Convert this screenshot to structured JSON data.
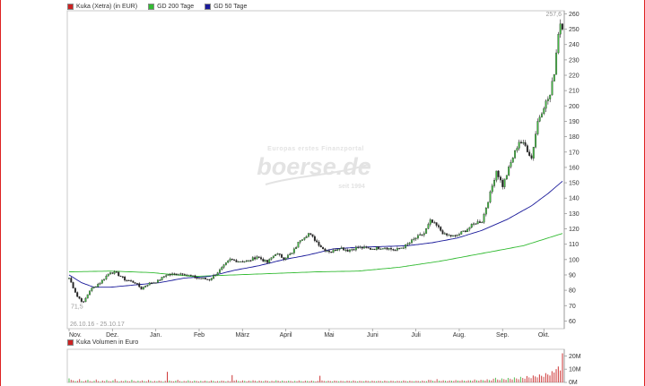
{
  "legend": {
    "price": {
      "label": "Kuka (Xetra) (in EUR)",
      "color": "#cc2222"
    },
    "gd200": {
      "label": "GD 200 Tage",
      "color": "#33bb33"
    },
    "gd50": {
      "label": "GD 50 Tage",
      "color": "#1a1a9a"
    }
  },
  "watermark": {
    "tagline": "Europas erstes Finanzportal",
    "brand": "boerse.de",
    "since": "seit 1994"
  },
  "date_range": "26.10.16 - 25.10.17",
  "volume_legend": {
    "label": "Kuka Volumen in Euro",
    "color": "#cc2222"
  },
  "chart_data": [
    {
      "type": "line",
      "title": "Kuka (Xetra) (in EUR)",
      "x": [
        "Nov.",
        "Dez.",
        "Jan.",
        "Feb",
        "März",
        "April",
        "Mai",
        "Juni",
        "Juli",
        "Aug.",
        "Sep.",
        "Okt."
      ],
      "ylim": [
        55,
        262
      ],
      "yticks": [
        60,
        70,
        80,
        90,
        100,
        110,
        120,
        130,
        140,
        150,
        160,
        170,
        180,
        190,
        200,
        210,
        220,
        230,
        240,
        250,
        260
      ],
      "min_label": "71,5",
      "max_label": "257,6",
      "grid": false,
      "series": [
        {
          "name": "Kuka (Xetra) (in EUR)",
          "color": "#1a1a1a",
          "knots": [
            [
              0,
              88
            ],
            [
              4,
              76
            ],
            [
              7,
              72
            ],
            [
              10,
              80
            ],
            [
              15,
              85
            ],
            [
              20,
              92
            ],
            [
              23,
              91
            ],
            [
              27,
              87
            ],
            [
              32,
              85
            ],
            [
              35,
              81
            ],
            [
              38,
              84
            ],
            [
              43,
              86
            ],
            [
              47,
              90
            ],
            [
              55,
              91
            ],
            [
              62,
              88
            ],
            [
              68,
              87
            ],
            [
              73,
              93
            ],
            [
              78,
              100
            ],
            [
              82,
              99
            ],
            [
              87,
              99
            ],
            [
              91,
              102
            ],
            [
              96,
              98
            ],
            [
              100,
              104
            ],
            [
              104,
              101
            ],
            [
              108,
              104
            ],
            [
              112,
              113
            ],
            [
              116,
              117
            ],
            [
              119,
              113
            ],
            [
              123,
              107
            ],
            [
              127,
              105
            ],
            [
              131,
              108
            ],
            [
              135,
              106
            ],
            [
              140,
              108
            ],
            [
              146,
              107
            ],
            [
              153,
              108
            ],
            [
              158,
              106
            ],
            [
              163,
              109
            ],
            [
              168,
              114
            ],
            [
              172,
              117
            ],
            [
              175,
              125
            ],
            [
              178,
              122
            ],
            [
              182,
              116
            ],
            [
              187,
              115
            ],
            [
              192,
              119
            ],
            [
              197,
              124
            ],
            [
              200,
              125
            ],
            [
              204,
              143
            ],
            [
              207,
              158
            ],
            [
              210,
              148
            ],
            [
              214,
              163
            ],
            [
              218,
              177
            ],
            [
              221,
              174
            ],
            [
              224,
              166
            ],
            [
              227,
              190
            ],
            [
              230,
              200
            ],
            [
              233,
              207
            ],
            [
              235,
              222
            ],
            [
              237,
              248
            ],
            [
              238,
              254
            ],
            [
              239,
              252
            ]
          ]
        },
        {
          "name": "GD 200 Tage",
          "color": "#33bb33",
          "knots": [
            [
              0,
              92
            ],
            [
              20,
              92.5
            ],
            [
              40,
              91.5
            ],
            [
              60,
              89
            ],
            [
              80,
              90
            ],
            [
              100,
              91
            ],
            [
              120,
              92
            ],
            [
              140,
              92.5
            ],
            [
              160,
              95
            ],
            [
              180,
              99
            ],
            [
              200,
              104
            ],
            [
              220,
              109
            ],
            [
              239,
              117
            ]
          ]
        },
        {
          "name": "GD 50 Tage",
          "color": "#1a1a9a",
          "knots": [
            [
              0,
              90
            ],
            [
              6,
              85
            ],
            [
              12,
              82
            ],
            [
              20,
              82
            ],
            [
              32,
              83.5
            ],
            [
              44,
              85
            ],
            [
              56,
              88
            ],
            [
              68,
              89
            ],
            [
              80,
              93
            ],
            [
              92,
              96
            ],
            [
              104,
              100
            ],
            [
              116,
              103
            ],
            [
              128,
              107
            ],
            [
              140,
              108
            ],
            [
              152,
              108.5
            ],
            [
              164,
              109
            ],
            [
              176,
              111
            ],
            [
              188,
              114
            ],
            [
              200,
              119
            ],
            [
              212,
              126
            ],
            [
              224,
              135
            ],
            [
              232,
              143
            ],
            [
              239,
              151
            ]
          ]
        }
      ]
    },
    {
      "type": "bar",
      "title": "Kuka Volumen in Euro",
      "ylim": [
        0,
        25
      ],
      "yticks": [
        "0M",
        "10M",
        "20M"
      ],
      "grid": false,
      "bars": [
        3,
        2,
        1.5,
        1,
        1.2,
        2.5,
        1,
        0.8,
        1.5,
        2,
        1,
        0.7,
        1.2,
        2.2,
        1,
        0.6,
        1.4,
        0.9,
        1.8,
        1,
        0.8,
        1.5,
        2.5,
        1,
        0.7,
        1.2,
        0.9,
        1.6,
        1,
        0.8,
        2,
        1.1,
        0.7,
        1.3,
        0.9,
        1.5,
        1,
        0.8,
        1.9,
        1.2,
        0.7,
        1.1,
        0.9,
        1.4,
        1,
        0.6,
        1.2,
        8,
        1.5,
        1,
        0.8,
        1.3,
        2,
        1,
        0.7,
        1.1,
        0.9,
        1.6,
        1,
        0.8,
        1.4,
        1.1,
        0.7,
        1.2,
        0.9,
        1.3,
        1,
        0.8,
        1.5,
        1.2,
        0.7,
        1,
        0.9,
        1.4,
        1.1,
        0.7,
        1.2,
        0.8,
        5.5,
        1.4,
        1.8,
        1.1,
        0.9,
        1.5,
        1.2,
        0.8,
        1.3,
        1,
        1.6,
        1.2,
        0.8,
        1.4,
        1,
        0.9,
        1.5,
        1.1,
        0.7,
        1.2,
        0.9,
        1.6,
        1.3,
        0.8,
        1.4,
        1,
        0.9,
        1.3,
        1.1,
        0.7,
        1.2,
        0.9,
        1.5,
        1,
        0.8,
        1.3,
        1.1,
        0.9,
        1.4,
        1,
        0.8,
        1.2,
        5,
        1.5,
        1.1,
        0.9,
        1.3,
        1,
        0.8,
        1.4,
        1.1,
        0.9,
        1.2,
        1,
        0.8,
        1.3,
        1.1,
        0.9,
        1.5,
        1,
        0.8,
        1.2,
        1,
        0.9,
        1.4,
        1.1,
        0.8,
        1.3,
        1,
        0.9,
        1.2,
        1.1,
        0.8,
        1.4,
        1,
        0.9,
        1.3,
        1.1,
        0.8,
        1.2,
        1,
        0.9,
        1.5,
        1.1,
        0.8,
        1.3,
        1,
        0.9,
        1.2,
        1.1,
        0.8,
        1.4,
        1,
        0.9,
        2,
        1.8,
        1.2,
        1,
        2.5,
        1.3,
        1.1,
        1.6,
        1.2,
        1,
        1.5,
        1.3,
        1.1,
        1.8,
        1.4,
        1.2,
        1.7,
        1.3,
        1.1,
        1.6,
        1.5,
        1.2,
        2.2,
        1.6,
        1.3,
        2,
        1.7,
        1.4,
        2.4,
        1.8,
        1.5,
        2.8,
        3.5,
        2.2,
        1.8,
        3,
        2.5,
        2,
        3.4,
        2.8,
        2.2,
        3.8,
        3,
        2.4,
        4.2,
        3.4,
        2.8,
        4.8,
        3.8,
        3.2,
        5.2,
        4.5,
        3.8,
        6,
        5,
        4.2,
        7,
        6,
        5.2,
        8.5,
        7.5,
        10,
        12,
        9,
        22
      ]
    }
  ]
}
